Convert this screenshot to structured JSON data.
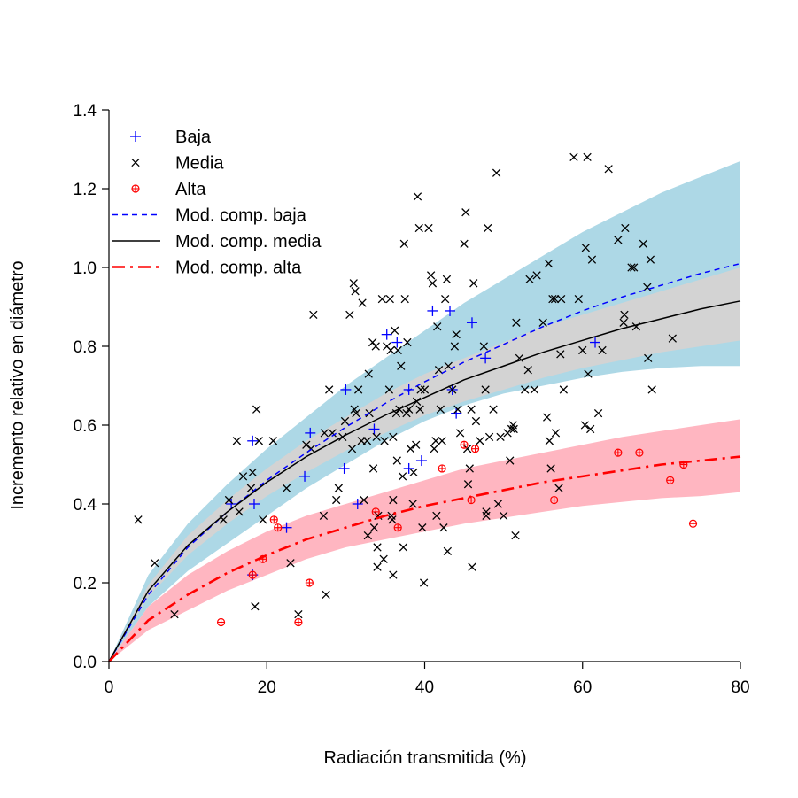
{
  "chart_data": {
    "type": "scatter",
    "title": "",
    "xlabel": "Radiación transmitida (%)",
    "ylabel": "Incremento relativo en diámetro",
    "xlim": [
      0,
      80
    ],
    "ylim": [
      0,
      1.4
    ],
    "xticks": [
      "0",
      "20",
      "40",
      "60",
      "80"
    ],
    "yticks": [
      "0.0",
      "0.2",
      "0.4",
      "0.6",
      "0.8",
      "1.0",
      "1.2",
      "1.4"
    ],
    "grid": false,
    "legend_position": "top-left",
    "legend": [
      {
        "label": "Baja",
        "kind": "point",
        "marker": "plus",
        "color": "#0000ff"
      },
      {
        "label": "Media",
        "kind": "point",
        "marker": "cross",
        "color": "#000000"
      },
      {
        "label": "Alta",
        "kind": "point",
        "marker": "circle-plus",
        "color": "#ff0000"
      },
      {
        "label": "Mod. comp. baja",
        "kind": "line",
        "dash": "dashed",
        "color": "#0000ff"
      },
      {
        "label": "Mod. comp. media",
        "kind": "line",
        "dash": "solid",
        "color": "#000000"
      },
      {
        "label": "Mod. comp. alta",
        "kind": "line",
        "dash": "dashdot",
        "color": "#ff0000"
      }
    ],
    "bands": [
      {
        "name": "baja",
        "color": "#add8e6",
        "x": [
          0,
          5,
          10,
          15,
          20,
          25,
          30,
          35,
          40,
          45,
          50,
          55,
          60,
          65,
          70,
          75,
          80
        ],
        "upper": [
          0,
          0.22,
          0.35,
          0.45,
          0.54,
          0.62,
          0.7,
          0.77,
          0.84,
          0.91,
          0.97,
          1.03,
          1.09,
          1.14,
          1.19,
          1.23,
          1.27
        ],
        "lower": [
          0,
          0.14,
          0.23,
          0.3,
          0.37,
          0.44,
          0.5,
          0.56,
          0.61,
          0.65,
          0.68,
          0.7,
          0.72,
          0.735,
          0.745,
          0.75,
          0.75
        ]
      },
      {
        "name": "media",
        "color": "#d3d3d3",
        "x": [
          0,
          5,
          10,
          15,
          20,
          25,
          30,
          35,
          40,
          45,
          50,
          55,
          60,
          65,
          70,
          75,
          80
        ],
        "upper": [
          0,
          0.195,
          0.32,
          0.41,
          0.49,
          0.56,
          0.62,
          0.68,
          0.73,
          0.77,
          0.81,
          0.85,
          0.88,
          0.91,
          0.94,
          0.97,
          1.0
        ],
        "lower": [
          0,
          0.165,
          0.27,
          0.35,
          0.42,
          0.48,
          0.535,
          0.58,
          0.625,
          0.66,
          0.69,
          0.72,
          0.745,
          0.765,
          0.785,
          0.8,
          0.815
        ]
      },
      {
        "name": "alta",
        "color": "#ffb6c1",
        "x": [
          0,
          5,
          10,
          15,
          20,
          25,
          30,
          35,
          40,
          45,
          50,
          55,
          60,
          65,
          70,
          75,
          80
        ],
        "upper": [
          0,
          0.14,
          0.22,
          0.28,
          0.33,
          0.37,
          0.4,
          0.43,
          0.46,
          0.49,
          0.51,
          0.53,
          0.55,
          0.57,
          0.585,
          0.6,
          0.615
        ],
        "lower": [
          0,
          0.08,
          0.13,
          0.18,
          0.22,
          0.26,
          0.29,
          0.31,
          0.33,
          0.35,
          0.365,
          0.38,
          0.395,
          0.405,
          0.415,
          0.42,
          0.43
        ]
      }
    ],
    "curves": [
      {
        "name": "Mod. comp. baja",
        "color": "#0000ff",
        "dash": "dashed",
        "x": [
          0,
          5,
          10,
          15,
          20,
          25,
          30,
          35,
          40,
          45,
          50,
          55,
          60,
          65,
          70,
          75,
          80
        ],
        "y": [
          0,
          0.17,
          0.29,
          0.38,
          0.46,
          0.53,
          0.595,
          0.655,
          0.71,
          0.76,
          0.805,
          0.85,
          0.89,
          0.925,
          0.955,
          0.985,
          1.01
        ]
      },
      {
        "name": "Mod. comp. media",
        "color": "#000000",
        "dash": "solid",
        "x": [
          0,
          5,
          10,
          15,
          20,
          25,
          30,
          35,
          40,
          45,
          50,
          55,
          60,
          65,
          70,
          75,
          80
        ],
        "y": [
          0,
          0.18,
          0.295,
          0.38,
          0.455,
          0.52,
          0.575,
          0.625,
          0.67,
          0.715,
          0.75,
          0.785,
          0.815,
          0.845,
          0.87,
          0.895,
          0.915
        ]
      },
      {
        "name": "Mod. comp. alta",
        "color": "#ff0000",
        "dash": "dashdot",
        "x": [
          0,
          5,
          10,
          15,
          20,
          25,
          30,
          35,
          40,
          45,
          50,
          55,
          60,
          65,
          70,
          75,
          80
        ],
        "y": [
          0,
          0.105,
          0.17,
          0.225,
          0.27,
          0.31,
          0.34,
          0.37,
          0.395,
          0.415,
          0.435,
          0.455,
          0.47,
          0.485,
          0.5,
          0.51,
          0.52
        ]
      }
    ],
    "series": [
      {
        "name": "Baja",
        "marker": "plus",
        "color": "#0000ff",
        "points": [
          [
            15.5,
            0.4
          ],
          [
            18.2,
            0.56
          ],
          [
            18.4,
            0.4
          ],
          [
            18.2,
            0.22
          ],
          [
            22.5,
            0.34
          ],
          [
            24.8,
            0.47
          ],
          [
            25.5,
            0.58
          ],
          [
            29.8,
            0.49
          ],
          [
            30.0,
            0.69
          ],
          [
            31.5,
            0.4
          ],
          [
            33.6,
            0.59
          ],
          [
            35.2,
            0.83
          ],
          [
            36.5,
            0.81
          ],
          [
            38.0,
            0.69
          ],
          [
            38.0,
            0.49
          ],
          [
            39.6,
            0.51
          ],
          [
            41.0,
            0.89
          ],
          [
            43.2,
            0.89
          ],
          [
            43.5,
            0.69
          ],
          [
            44.0,
            0.63
          ],
          [
            46.0,
            0.86
          ],
          [
            47.7,
            0.77
          ],
          [
            61.6,
            0.81
          ]
        ]
      },
      {
        "name": "Media",
        "marker": "cross",
        "color": "#000000",
        "points": [
          [
            3.7,
            0.36
          ],
          [
            5.8,
            0.25
          ],
          [
            8.3,
            0.12
          ],
          [
            14.5,
            0.36
          ],
          [
            15.2,
            0.41
          ],
          [
            16.2,
            0.56
          ],
          [
            16.5,
            0.38
          ],
          [
            17.0,
            0.47
          ],
          [
            18.2,
            0.48
          ],
          [
            18.0,
            0.44
          ],
          [
            18.5,
            0.14
          ],
          [
            18.7,
            0.64
          ],
          [
            19.0,
            0.56
          ],
          [
            19.5,
            0.36
          ],
          [
            20.8,
            0.56
          ],
          [
            22.5,
            0.44
          ],
          [
            23.0,
            0.25
          ],
          [
            24.0,
            0.12
          ],
          [
            25.0,
            0.55
          ],
          [
            25.6,
            0.54
          ],
          [
            25.9,
            0.88
          ],
          [
            27.2,
            0.37
          ],
          [
            27.3,
            0.58
          ],
          [
            27.5,
            0.17
          ],
          [
            27.9,
            0.69
          ],
          [
            28.3,
            0.58
          ],
          [
            28.8,
            0.41
          ],
          [
            29.1,
            0.44
          ],
          [
            29.6,
            0.57
          ],
          [
            29.9,
            0.61
          ],
          [
            30.5,
            0.88
          ],
          [
            30.8,
            0.54
          ],
          [
            31.0,
            0.96
          ],
          [
            31.1,
            0.64
          ],
          [
            31.2,
            0.94
          ],
          [
            31.3,
            0.63
          ],
          [
            31.6,
            0.69
          ],
          [
            32.0,
            0.56
          ],
          [
            32.1,
            0.91
          ],
          [
            32.3,
            0.41
          ],
          [
            32.7,
            0.56
          ],
          [
            32.9,
            0.73
          ],
          [
            32.8,
            0.32
          ],
          [
            33.0,
            0.63
          ],
          [
            33.4,
            0.81
          ],
          [
            33.5,
            0.49
          ],
          [
            33.6,
            0.34
          ],
          [
            33.8,
            0.8
          ],
          [
            33.9,
            0.57
          ],
          [
            34.0,
            0.24
          ],
          [
            34.0,
            0.29
          ],
          [
            34.1,
            0.37
          ],
          [
            34.6,
            0.92
          ],
          [
            34.8,
            0.26
          ],
          [
            34.9,
            0.56
          ],
          [
            35.2,
            0.8
          ],
          [
            35.5,
            0.69
          ],
          [
            35.6,
            0.92
          ],
          [
            35.7,
            0.79
          ],
          [
            35.8,
            0.37
          ],
          [
            35.9,
            0.36
          ],
          [
            36.0,
            0.41
          ],
          [
            36.0,
            0.22
          ],
          [
            36.0,
            0.57
          ],
          [
            36.2,
            0.84
          ],
          [
            36.4,
            0.63
          ],
          [
            36.5,
            0.51
          ],
          [
            36.6,
            0.79
          ],
          [
            36.8,
            0.64
          ],
          [
            37.0,
            0.75
          ],
          [
            37.2,
            0.47
          ],
          [
            37.3,
            0.29
          ],
          [
            37.4,
            1.06
          ],
          [
            37.5,
            0.92
          ],
          [
            37.7,
            0.63
          ],
          [
            37.8,
            0.81
          ],
          [
            38.0,
            0.64
          ],
          [
            38.2,
            0.54
          ],
          [
            38.5,
            0.4
          ],
          [
            38.6,
            0.48
          ],
          [
            38.9,
            0.55
          ],
          [
            39.0,
            0.66
          ],
          [
            39.1,
            1.18
          ],
          [
            39.3,
            1.1
          ],
          [
            39.4,
            0.64
          ],
          [
            39.5,
            0.69
          ],
          [
            39.7,
            0.34
          ],
          [
            39.9,
            0.2
          ],
          [
            40.0,
            0.69
          ],
          [
            40.5,
            1.1
          ],
          [
            40.8,
            0.98
          ],
          [
            41.0,
            0.96
          ],
          [
            41.2,
            0.54
          ],
          [
            41.4,
            0.56
          ],
          [
            41.5,
            0.37
          ],
          [
            41.6,
            0.85
          ],
          [
            41.8,
            0.74
          ],
          [
            42.0,
            0.64
          ],
          [
            42.2,
            0.56
          ],
          [
            42.4,
            0.34
          ],
          [
            42.6,
            0.92
          ],
          [
            42.8,
            0.97
          ],
          [
            42.9,
            0.28
          ],
          [
            43.0,
            0.75
          ],
          [
            43.5,
            0.69
          ],
          [
            43.8,
            0.8
          ],
          [
            44.0,
            0.83
          ],
          [
            44.2,
            0.64
          ],
          [
            44.5,
            0.58
          ],
          [
            45.0,
            1.06
          ],
          [
            45.2,
            1.14
          ],
          [
            45.4,
            0.54
          ],
          [
            45.5,
            0.45
          ],
          [
            45.7,
            0.49
          ],
          [
            45.9,
            0.64
          ],
          [
            46.0,
            0.24
          ],
          [
            46.2,
            0.96
          ],
          [
            46.5,
            0.61
          ],
          [
            47.0,
            0.56
          ],
          [
            47.5,
            0.8
          ],
          [
            47.7,
            0.69
          ],
          [
            47.8,
            0.38
          ],
          [
            47.8,
            0.37
          ],
          [
            48.0,
            1.1
          ],
          [
            48.2,
            0.57
          ],
          [
            48.7,
            0.64
          ],
          [
            49.1,
            1.24
          ],
          [
            49.3,
            0.4
          ],
          [
            49.6,
            0.57
          ],
          [
            50.0,
            0.37
          ],
          [
            50.5,
            0.58
          ],
          [
            50.8,
            0.51
          ],
          [
            51.0,
            0.59
          ],
          [
            51.2,
            0.6
          ],
          [
            51.3,
            0.59
          ],
          [
            51.5,
            0.32
          ],
          [
            51.6,
            0.86
          ],
          [
            52.0,
            0.77
          ],
          [
            52.7,
            0.69
          ],
          [
            53.1,
            0.74
          ],
          [
            53.3,
            0.97
          ],
          [
            53.9,
            0.69
          ],
          [
            54.2,
            0.98
          ],
          [
            55.0,
            0.86
          ],
          [
            55.5,
            0.62
          ],
          [
            55.7,
            1.01
          ],
          [
            55.8,
            0.56
          ],
          [
            56.0,
            0.49
          ],
          [
            56.2,
            0.92
          ],
          [
            56.5,
            0.92
          ],
          [
            56.6,
            0.58
          ],
          [
            57.0,
            0.44
          ],
          [
            57.2,
            0.78
          ],
          [
            57.3,
            0.92
          ],
          [
            57.6,
            0.69
          ],
          [
            58.9,
            1.28
          ],
          [
            59.5,
            0.92
          ],
          [
            60.0,
            0.79
          ],
          [
            60.3,
            0.6
          ],
          [
            60.4,
            1.05
          ],
          [
            60.6,
            1.28
          ],
          [
            60.7,
            0.73
          ],
          [
            61.0,
            0.59
          ],
          [
            61.2,
            1.02
          ],
          [
            62.0,
            0.63
          ],
          [
            62.5,
            0.79
          ],
          [
            63.3,
            1.25
          ],
          [
            64.5,
            1.07
          ],
          [
            65.2,
            0.86
          ],
          [
            65.3,
            0.88
          ],
          [
            65.4,
            1.1
          ],
          [
            66.2,
            1.0
          ],
          [
            66.5,
            1.0
          ],
          [
            66.8,
            0.85
          ],
          [
            67.7,
            1.06
          ],
          [
            68.2,
            0.95
          ],
          [
            68.3,
            0.77
          ],
          [
            68.6,
            1.02
          ],
          [
            68.8,
            0.69
          ],
          [
            71.4,
            0.82
          ]
        ]
      },
      {
        "name": "Alta",
        "marker": "circle-plus",
        "color": "#ff0000",
        "points": [
          [
            14.2,
            0.1
          ],
          [
            18.2,
            0.22
          ],
          [
            19.5,
            0.26
          ],
          [
            20.9,
            0.36
          ],
          [
            21.4,
            0.34
          ],
          [
            25.4,
            0.2
          ],
          [
            24.0,
            0.1
          ],
          [
            33.8,
            0.38
          ],
          [
            36.6,
            0.34
          ],
          [
            42.2,
            0.49
          ],
          [
            45.0,
            0.55
          ],
          [
            45.9,
            0.41
          ],
          [
            46.4,
            0.54
          ],
          [
            56.4,
            0.41
          ],
          [
            64.5,
            0.53
          ],
          [
            67.2,
            0.53
          ],
          [
            71.1,
            0.46
          ],
          [
            72.8,
            0.5
          ],
          [
            74.0,
            0.35
          ]
        ]
      }
    ]
  }
}
